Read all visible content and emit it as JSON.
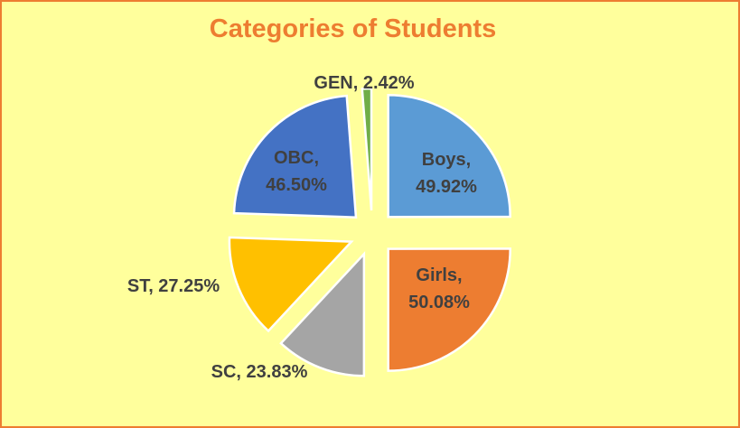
{
  "chart_data": {
    "type": "pie",
    "title": "Categories of Students",
    "categories": [
      "Boys",
      "Girls",
      "SC",
      "ST",
      "OBC",
      "GEN"
    ],
    "values": [
      49.92,
      50.08,
      23.83,
      27.25,
      46.5,
      2.42
    ],
    "value_labels": [
      "Boys, 49.92%",
      "Girls, 50.08%",
      "SC, 23.83%",
      "ST, 27.25%",
      "OBC, 46.50%",
      "GEN, 2.42%"
    ],
    "colors": [
      "#5b9bd5",
      "#ed7d31",
      "#a5a5a5",
      "#ffc000",
      "#4472c4",
      "#70ad47"
    ]
  }
}
